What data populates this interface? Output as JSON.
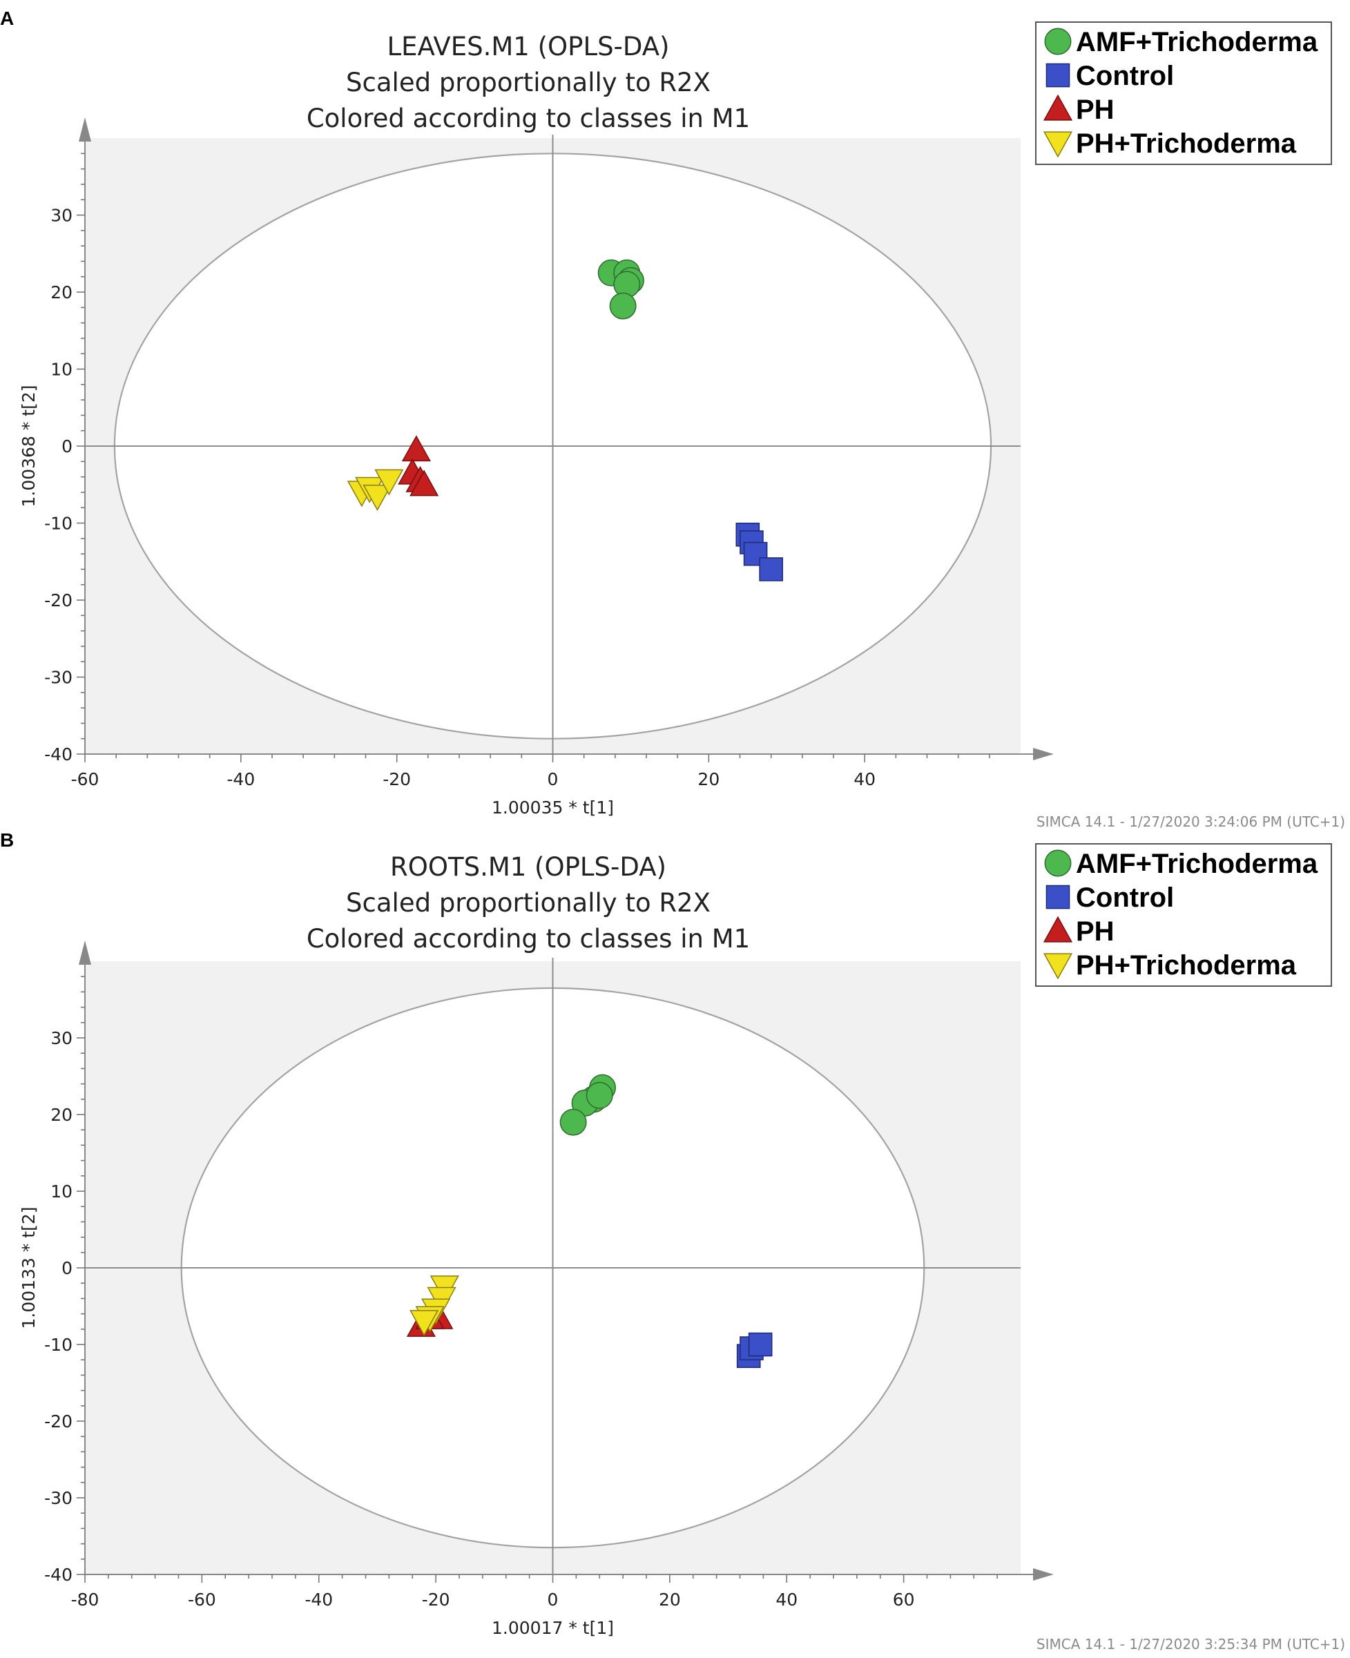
{
  "chart_data": [
    {
      "type": "scatter",
      "panel": "A",
      "title": [
        "LEAVES.M1 (OPLS-DA)",
        "Scaled proportionally to R2X",
        "Colored according to classes in M1"
      ],
      "xlabel": "1.00035 * t[1]",
      "ylabel": "1.00368 * t[2]",
      "xlim": [
        -60,
        60
      ],
      "ylim": [
        -40,
        40
      ],
      "xticks": [
        -60,
        -40,
        -20,
        0,
        20,
        40
      ],
      "yticks": [
        30,
        20,
        10,
        0,
        -10,
        -20,
        -30,
        -40
      ],
      "ellipse": {
        "rx": 56.2,
        "ry": 38
      },
      "footer": "SIMCA 14.1 - 1/27/2020 3:24:06 PM (UTC+1)",
      "legend": [
        "AMF+Trichoderma",
        "Control",
        "PH",
        "PH+Trichoderma"
      ],
      "series": [
        {
          "name": "AMF+Trichoderma",
          "marker": "circle",
          "color": "#4db84d",
          "points": [
            [
              7.5,
              22.5
            ],
            [
              9.5,
              22.5
            ],
            [
              10,
              21.5
            ],
            [
              9.5,
              21
            ],
            [
              9,
              18.2
            ]
          ]
        },
        {
          "name": "Control",
          "marker": "square",
          "color": "#3a4fc8",
          "points": [
            [
              25,
              -11.5
            ],
            [
              25.5,
              -12.5
            ],
            [
              26,
              -14
            ],
            [
              28,
              -16
            ]
          ]
        },
        {
          "name": "PH",
          "marker": "triangle-up",
          "color": "#c41e1e",
          "points": [
            [
              -17.5,
              -0.5
            ],
            [
              -18,
              -3.5
            ],
            [
              -17,
              -4.5
            ],
            [
              -16.5,
              -5
            ]
          ]
        },
        {
          "name": "PH+Trichoderma",
          "marker": "triangle-down",
          "color": "#f2e21d",
          "points": [
            [
              -24.5,
              -6
            ],
            [
              -23.5,
              -5.5
            ],
            [
              -22.5,
              -6.5
            ],
            [
              -21,
              -4.5
            ]
          ]
        }
      ]
    },
    {
      "type": "scatter",
      "panel": "B",
      "title": [
        "ROOTS.M1 (OPLS-DA)",
        "Scaled proportionally to R2X",
        "Colored according to classes in M1"
      ],
      "xlabel": "1.00017 * t[1]",
      "ylabel": "1.00133 * t[2]",
      "xlim": [
        -80,
        80
      ],
      "ylim": [
        -40,
        40
      ],
      "xticks": [
        -80,
        -60,
        -40,
        -20,
        0,
        20,
        40,
        60
      ],
      "yticks": [
        30,
        20,
        10,
        0,
        -10,
        -20,
        -30,
        -40
      ],
      "ellipse": {
        "rx": 63.5,
        "ry": 36.5
      },
      "footer": "SIMCA 14.1 - 1/27/2020 3:25:34 PM (UTC+1)",
      "legend": [
        "AMF+Trichoderma",
        "Control",
        "PH",
        "PH+Trichoderma"
      ],
      "series": [
        {
          "name": "AMF+Trichoderma",
          "marker": "circle",
          "color": "#4db84d",
          "points": [
            [
              8.5,
              23.5
            ],
            [
              7,
              22
            ],
            [
              5.5,
              21.5
            ],
            [
              8,
              22.5
            ],
            [
              3.5,
              19
            ]
          ]
        },
        {
          "name": "Control",
          "marker": "square",
          "color": "#3a4fc8",
          "points": [
            [
              33.5,
              -11.5
            ],
            [
              34,
              -10.5
            ],
            [
              35.5,
              -10
            ]
          ]
        },
        {
          "name": "PH",
          "marker": "triangle-up",
          "color": "#c41e1e",
          "points": [
            [
              -22.5,
              -7.5
            ],
            [
              -20.5,
              -6
            ],
            [
              -19.5,
              -6.5
            ],
            [
              -21,
              -6.5
            ]
          ]
        },
        {
          "name": "PH+Trichoderma",
          "marker": "triangle-down",
          "color": "#f2e21d",
          "points": [
            [
              -18.5,
              -2.5
            ],
            [
              -19,
              -4
            ],
            [
              -20,
              -5.5
            ],
            [
              -21,
              -6.5
            ],
            [
              -22,
              -7
            ]
          ]
        }
      ]
    }
  ]
}
